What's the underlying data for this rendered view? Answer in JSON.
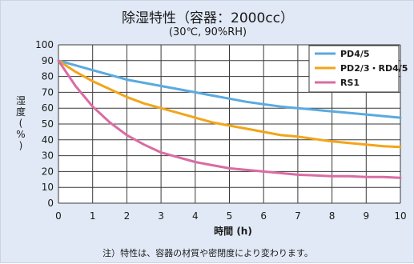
{
  "chart_data": {
    "type": "line",
    "title": "除湿特性（容器：2000cc）",
    "subtitle": "(30℃, 90%RH)",
    "xlabel": "時間 (h)",
    "ylabel": "湿度 (%)",
    "xlim": [
      0,
      10
    ],
    "ylim": [
      0,
      100
    ],
    "x_ticks": [
      "0",
      "1",
      "2",
      "3",
      "4",
      "5",
      "6",
      "7",
      "8",
      "9",
      "10"
    ],
    "y_ticks": [
      "0",
      "10",
      "20",
      "30",
      "40",
      "50",
      "60",
      "70",
      "80",
      "90",
      "100"
    ],
    "grid": true,
    "legend_position": "top-right",
    "x": [
      0,
      0.5,
      1,
      1.5,
      2,
      2.5,
      3,
      3.5,
      4,
      4.5,
      5,
      5.5,
      6,
      6.5,
      7,
      7.5,
      8,
      8.5,
      9,
      9.5,
      10
    ],
    "series": [
      {
        "name": "PD4/5",
        "color": "#5aaadf",
        "values": [
          90,
          87,
          84,
          81,
          78,
          76,
          74,
          72,
          70,
          68,
          66,
          64,
          62.5,
          61,
          60,
          59,
          58,
          57,
          56,
          55,
          54
        ]
      },
      {
        "name": "PD2/3・RD4/5",
        "color": "#f2a51a",
        "values": [
          90,
          83,
          77,
          72,
          67,
          63,
          60,
          57,
          54,
          51,
          49,
          47,
          45,
          43,
          42,
          40.5,
          39,
          38,
          37,
          36,
          35.5
        ]
      },
      {
        "name": "RS1",
        "color": "#d96ca3",
        "values": [
          90,
          74,
          61,
          51,
          43,
          37,
          32,
          29,
          26,
          24,
          22,
          21,
          20,
          19,
          18,
          17.5,
          17,
          17,
          16.5,
          16.5,
          16
        ]
      }
    ]
  },
  "footnote": "注）特性は、容器の材質や密閉度により変わります。",
  "colors": {
    "background": "#e1e9f6",
    "plot_background": "#ffffff",
    "grid": "#3a3a3a"
  }
}
